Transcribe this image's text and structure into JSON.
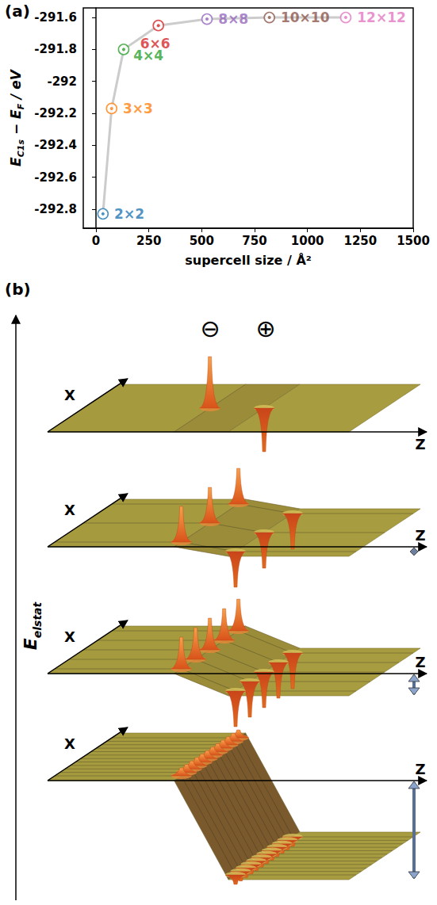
{
  "chart_data": {
    "type": "scatter",
    "panel_label": "(a)",
    "x": [
      33,
      74,
      131,
      295,
      525,
      820,
      1181
    ],
    "values": [
      -292.83,
      -292.17,
      -291.8,
      -291.65,
      -291.61,
      -291.6,
      -291.6
    ],
    "point_labels": [
      "2×2",
      "3×3",
      "4×4",
      "6×6",
      "8×8",
      "10×10",
      "12×12"
    ],
    "colors": [
      "#1f77b4",
      "#ff7f0e",
      "#2ca02c",
      "#d62728",
      "#9467bd",
      "#8c564b",
      "#e377c2"
    ],
    "color": "#cccccc",
    "marker": "circled_dot",
    "xlabel": "supercell size / Å²",
    "ylabel": [
      {
        "text": "E",
        "sub": "C1s"
      },
      {
        "text": " − E",
        "sub": "F"
      },
      {
        "text": " / eV"
      }
    ],
    "xlim": [
      -60,
      1500
    ],
    "xticks": [
      0,
      250,
      500,
      750,
      1000,
      1250,
      1500
    ],
    "ylim": [
      -292.92,
      -291.54
    ],
    "yticks": [
      -292.8,
      -292.6,
      -292.4,
      -292.2,
      -292.0,
      -291.8,
      -291.6
    ],
    "grid": false
  },
  "diagram": {
    "panel_label": "(b)",
    "charge_labels": [
      "⊖",
      "⊕"
    ],
    "x_axis_label": "X",
    "z_axis_label": "Z",
    "energy_label": {
      "text": "E",
      "sub": "elstat"
    },
    "sheets": [
      {
        "charges": 1
      },
      {
        "charges": 3
      },
      {
        "charges": 5
      },
      {
        "charges": 12
      }
    ]
  }
}
